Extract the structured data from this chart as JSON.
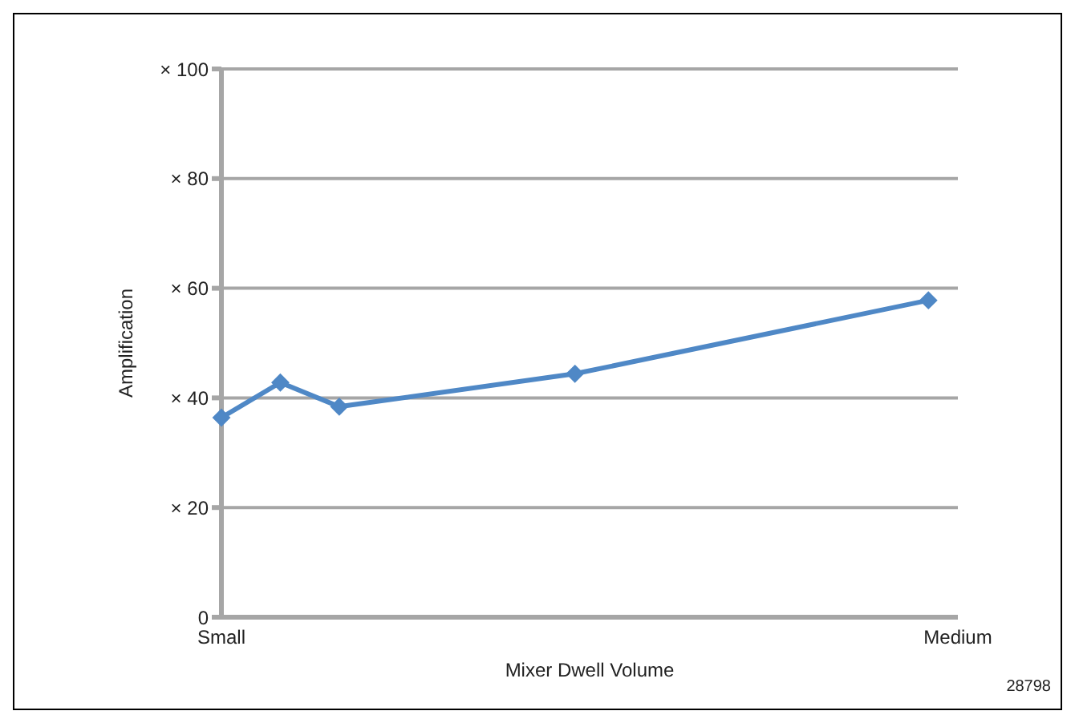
{
  "chart_data": {
    "type": "line",
    "xlabel": "Mixer Dwell Volume",
    "ylabel": "Amplification",
    "categories": [
      "Small",
      null,
      null,
      null,
      null,
      null,
      null,
      null,
      null,
      null,
      null,
      null,
      null,
      null,
      null,
      null,
      null,
      null,
      null,
      null,
      null,
      null,
      null,
      null,
      null,
      "Medium"
    ],
    "series": [
      {
        "color": "#4f88c6",
        "values": [
          36.4,
          null,
          42.8,
          null,
          38.4,
          null,
          null,
          null,
          null,
          null,
          null,
          null,
          44.4,
          null,
          null,
          null,
          null,
          null,
          null,
          null,
          null,
          null,
          null,
          null,
          57.8,
          null
        ]
      }
    ],
    "ylim": [
      0,
      100
    ],
    "yticks": [
      {
        "value": 0,
        "label": "0"
      },
      {
        "value": 20,
        "label": "× 20"
      },
      {
        "value": 40,
        "label": "× 40"
      },
      {
        "value": 60,
        "label": "× 60"
      },
      {
        "value": 80,
        "label": "× 80"
      },
      {
        "value": 100,
        "label": "× 100"
      }
    ],
    "grid": "y",
    "marker": "diamond",
    "line_style": "solid",
    "annotations": [
      "28798"
    ]
  }
}
